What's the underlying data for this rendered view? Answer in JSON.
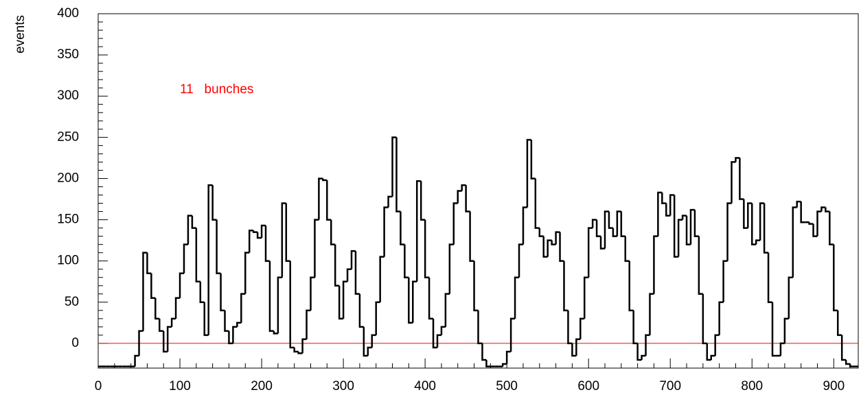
{
  "chart_data": {
    "type": "histogram",
    "y_label": "events",
    "annotation": "11   bunches",
    "annotation_color": "#ff0000",
    "color": "#000000",
    "baseline_color": "#ff0000",
    "xlim": [
      0,
      930
    ],
    "ylim": [
      -30,
      400
    ],
    "xticks": [
      0,
      100,
      200,
      300,
      400,
      500,
      600,
      700,
      800,
      900
    ],
    "yticks": [
      0,
      50,
      100,
      150,
      200,
      250,
      300,
      350,
      400
    ],
    "bins": [
      0,
      5,
      10,
      15,
      20,
      25,
      30,
      35,
      40,
      45,
      50,
      55,
      60,
      65,
      70,
      75,
      80,
      85,
      90,
      95,
      100,
      105,
      110,
      115,
      120,
      125,
      130,
      135,
      140,
      145,
      150,
      155,
      160,
      165,
      170,
      175,
      180,
      185,
      190,
      195,
      200,
      205,
      210,
      215,
      220,
      225,
      230,
      235,
      240,
      245,
      250,
      255,
      260,
      265,
      270,
      275,
      280,
      285,
      290,
      295,
      300,
      305,
      310,
      315,
      320,
      325,
      330,
      335,
      340,
      345,
      350,
      355,
      360,
      365,
      370,
      375,
      380,
      385,
      390,
      395,
      400,
      405,
      410,
      415,
      420,
      425,
      430,
      435,
      440,
      445,
      450,
      455,
      460,
      465,
      470,
      475,
      480,
      485,
      490,
      495,
      500,
      505,
      510,
      515,
      520,
      525,
      530,
      535,
      540,
      545,
      550,
      555,
      560,
      565,
      570,
      575,
      580,
      585,
      590,
      595,
      600,
      605,
      610,
      615,
      620,
      625,
      630,
      635,
      640,
      645,
      650,
      655,
      660,
      665,
      670,
      675,
      680,
      685,
      690,
      695,
      700,
      705,
      710,
      715,
      720,
      725,
      730,
      735,
      740,
      745,
      750,
      755,
      760,
      765,
      770,
      775,
      780,
      785,
      790,
      795,
      800,
      805,
      810,
      815,
      820,
      825,
      830,
      835,
      840,
      845,
      850,
      855,
      860,
      865,
      870,
      875,
      880,
      885,
      890,
      895,
      900,
      905,
      910,
      915,
      920,
      925,
      930
    ],
    "values": [
      -28,
      -28,
      -28,
      -28,
      -28,
      -28,
      -28,
      -28,
      -28,
      -15,
      15,
      110,
      85,
      55,
      30,
      15,
      -10,
      20,
      30,
      55,
      85,
      120,
      155,
      140,
      75,
      50,
      10,
      192,
      150,
      85,
      40,
      15,
      0,
      20,
      25,
      60,
      110,
      137,
      135,
      128,
      143,
      100,
      15,
      12,
      80,
      170,
      100,
      -5,
      -10,
      -12,
      5,
      40,
      80,
      150,
      200,
      198,
      150,
      120,
      70,
      30,
      75,
      90,
      112,
      60,
      20,
      -15,
      -5,
      10,
      50,
      105,
      165,
      178,
      250,
      160,
      120,
      80,
      25,
      75,
      197,
      150,
      80,
      30,
      -5,
      10,
      20,
      60,
      120,
      170,
      185,
      192,
      160,
      100,
      40,
      0,
      -20,
      -28,
      -28,
      -28,
      -28,
      -25,
      -10,
      30,
      80,
      120,
      165,
      247,
      200,
      140,
      130,
      105,
      125,
      120,
      135,
      100,
      40,
      0,
      -15,
      5,
      30,
      80,
      140,
      150,
      130,
      115,
      160,
      140,
      130,
      160,
      130,
      100,
      40,
      0,
      -20,
      -15,
      10,
      60,
      130,
      183,
      170,
      155,
      180,
      105,
      150,
      155,
      120,
      162,
      130,
      60,
      0,
      -20,
      -15,
      10,
      50,
      100,
      170,
      220,
      225,
      175,
      140,
      170,
      120,
      125,
      170,
      110,
      50,
      -15,
      -15,
      0,
      30,
      80,
      165,
      172,
      147,
      147,
      145,
      130,
      160,
      165,
      160,
      120,
      40,
      10,
      -20,
      -25,
      -28,
      -28
    ]
  }
}
